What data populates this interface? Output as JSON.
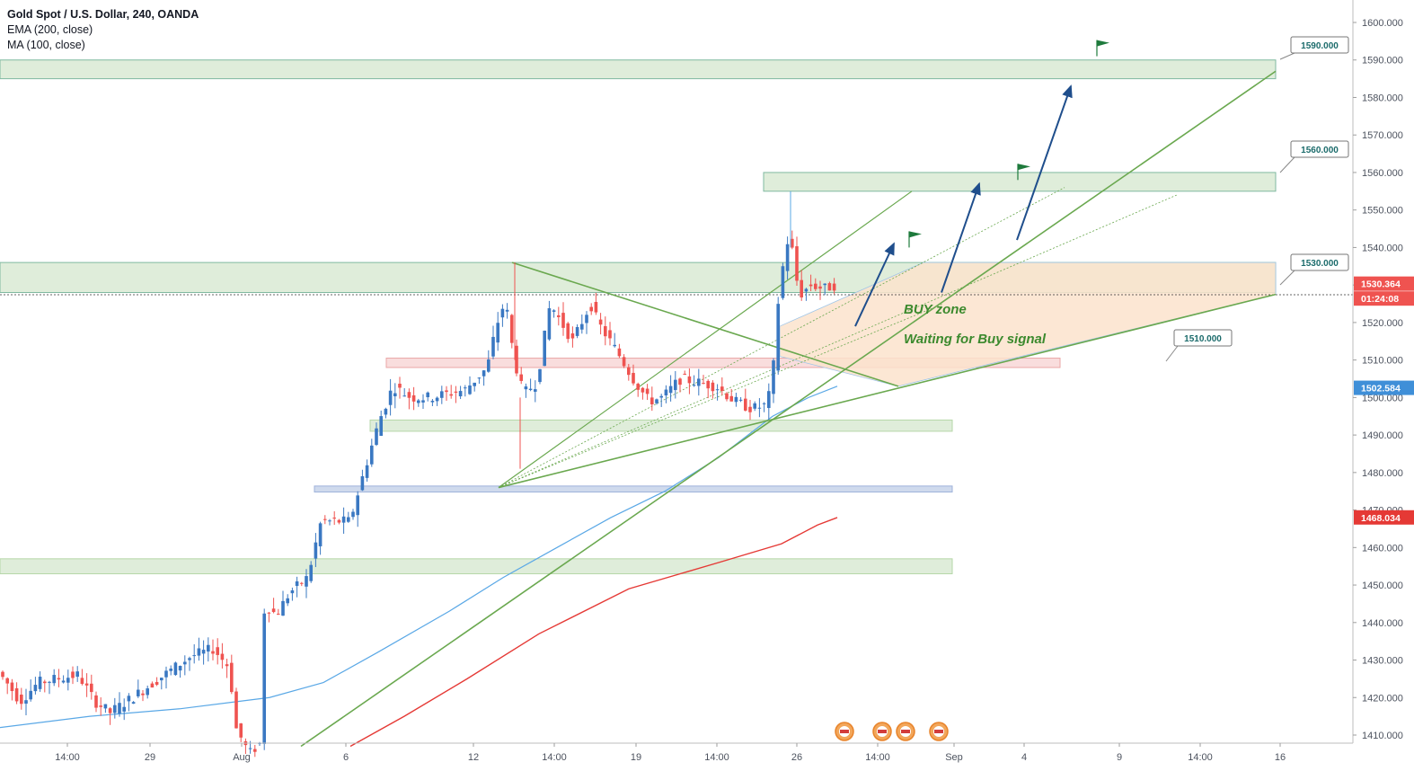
{
  "header": {
    "symbol": "Gold Spot / U.S. Dollar, 240, OANDA",
    "indicator_1": "EMA (200, close)",
    "indicator_2": "MA (100, close)"
  },
  "chart_data": {
    "type": "candlestick",
    "ylim": [
      1407,
      1605
    ],
    "y_ticks": [
      "1410.000",
      "1420.000",
      "1430.000",
      "1440.000",
      "1450.000",
      "1460.000",
      "1470.000",
      "1480.000",
      "1490.000",
      "1500.000",
      "1510.000",
      "1520.000",
      "1530.000",
      "1540.000",
      "1550.000",
      "1560.000",
      "1570.000",
      "1580.000",
      "1590.000",
      "1600.000"
    ],
    "x_ticks": [
      "14:00",
      "29",
      "Aug",
      "6",
      "12",
      "14:00",
      "19",
      "14:00",
      "26",
      "14:00",
      "Sep",
      "4",
      "9",
      "14:00",
      "16"
    ],
    "last_price": "1530.364",
    "countdown": "01:24:08",
    "ema_value": "1502.584",
    "ma_value": "1468.034",
    "callouts": [
      "1590.000",
      "1560.000",
      "1530.000",
      "1510.000"
    ],
    "annotations": [
      "BUY zone",
      "Waiting for Buy signal"
    ],
    "colors": {
      "up": "#3a78c2",
      "down": "#ef5350",
      "ema": "#5aa8e6",
      "ma": "#e53935",
      "trendline": "#6aa84f",
      "zone_green": "#d9ead3",
      "zone_red": "#f8d7d7",
      "zone_blue": "#c7d3ea",
      "buy_zone": "#fbe3cc",
      "arrow": "#1f4e8c"
    }
  }
}
